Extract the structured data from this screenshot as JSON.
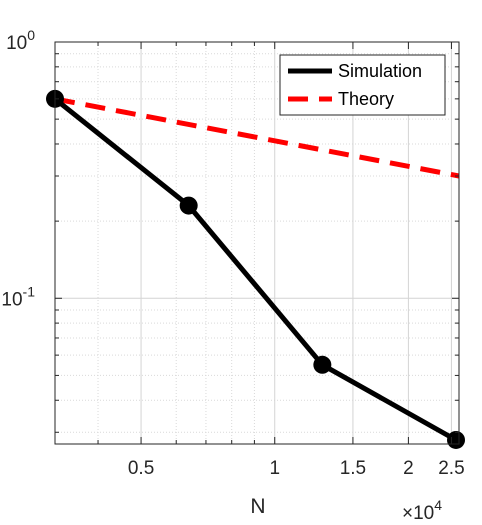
{
  "chart_data": {
    "type": "line",
    "xscale": "log",
    "yscale": "log",
    "xlabel": "N",
    "ylabel": "",
    "xlim": [
      3200,
      26000
    ],
    "ylim": [
      0.027,
      1
    ],
    "x_exponent_label": {
      "base": "×10",
      "exp": "4"
    },
    "xticks": [
      {
        "value": 5000,
        "label": "0.5"
      },
      {
        "value": 10000,
        "label": "1"
      },
      {
        "value": 15000,
        "label": "1.5"
      },
      {
        "value": 20000,
        "label": "2"
      },
      {
        "value": 25000,
        "label": "2.5"
      }
    ],
    "yticks": [
      {
        "value": 1,
        "base": "10",
        "exp": "0"
      },
      {
        "value": 0.1,
        "base": "10",
        "exp": "-1"
      }
    ],
    "grid": true,
    "legend_position": "top-right",
    "series": [
      {
        "name": "Simulation",
        "color": "#000000",
        "style": "solid",
        "marker": "circle",
        "x": [
          3200,
          6400,
          12800,
          25600
        ],
        "y": [
          0.6,
          0.23,
          0.055,
          0.028
        ]
      },
      {
        "name": "Theory",
        "color": "#ff0000",
        "style": "dashed",
        "marker": "none",
        "x": [
          3200,
          26000
        ],
        "y": [
          0.6,
          0.3
        ]
      }
    ]
  }
}
